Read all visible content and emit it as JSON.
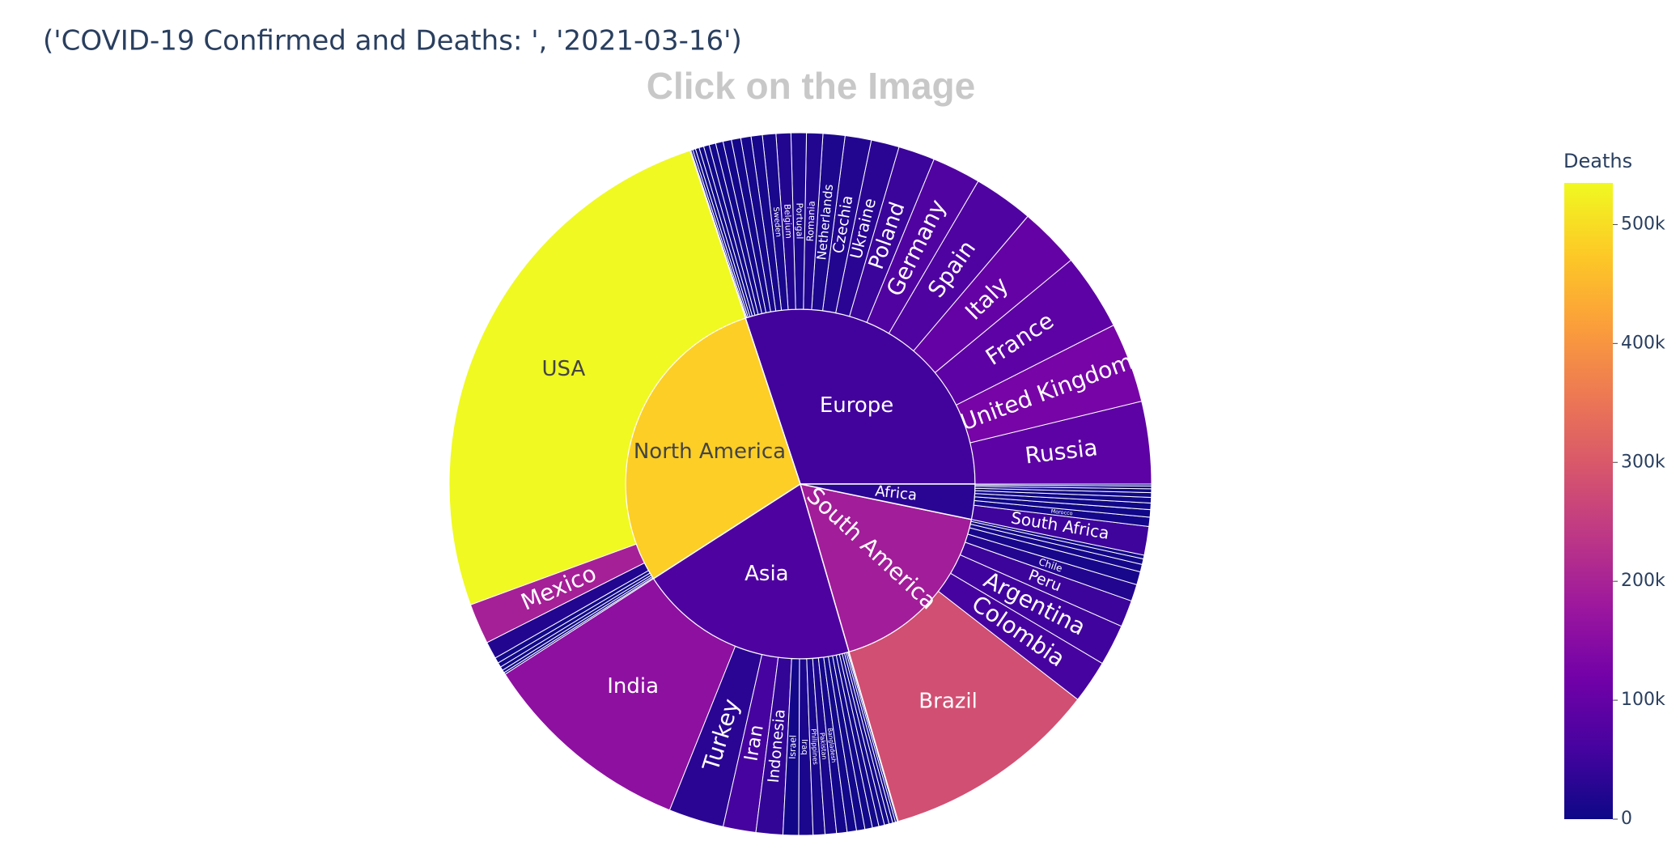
{
  "chart_data": {
    "type": "sunburst",
    "title": "('COVID-19 Confirmed and Deaths: ', '2021-03-16')",
    "subtitle": "Click on the Image",
    "colorbar_title": "Deaths",
    "clim": [
      0,
      535000
    ],
    "cticks": [
      0,
      {
        "value": 100000,
        "label": "100k"
      },
      {
        "value": 200000,
        "label": "200k"
      },
      {
        "value": 300000,
        "label": "300k"
      },
      {
        "value": 400000,
        "label": "400k"
      },
      {
        "value": 500000,
        "label": "500k"
      }
    ],
    "colorscale": [
      "#0d0887",
      "#46039f",
      "#7201a8",
      "#9c179e",
      "#bd3786",
      "#d8576b",
      "#ed7953",
      "#fb9f3a",
      "#fdca26",
      "#f0f921"
    ],
    "continents": [
      {
        "name": "Europe",
        "value": 34930000,
        "deaths": 55000,
        "children": [
          {
            "name": "Russia",
            "value": 4400000,
            "deaths": 90000
          },
          {
            "name": "United Kingdom",
            "value": 4270000,
            "deaths": 126000
          },
          {
            "name": "France",
            "value": 4100000,
            "deaths": 91000
          },
          {
            "name": "Italy",
            "value": 3240000,
            "deaths": 102000
          },
          {
            "name": "Spain",
            "value": 3200000,
            "deaths": 72000
          },
          {
            "name": "Germany",
            "value": 2600000,
            "deaths": 74000
          },
          {
            "name": "Poland",
            "value": 1950000,
            "deaths": 48000
          },
          {
            "name": "Ukraine",
            "value": 1500000,
            "deaths": 30000
          },
          {
            "name": "Czechia",
            "value": 1400000,
            "deaths": 23000
          },
          {
            "name": "Netherlands",
            "value": 1170000,
            "deaths": 16000
          },
          {
            "name": "Romania",
            "value": 870000,
            "deaths": 22000
          },
          {
            "name": "Portugal",
            "value": 820000,
            "deaths": 17000
          },
          {
            "name": "Belgium",
            "value": 790000,
            "deaths": 22000
          },
          {
            "name": "Sweden",
            "value": 720000,
            "deaths": 13000
          },
          {
            "name": null,
            "value": 600000,
            "deaths": 10000
          },
          {
            "name": null,
            "value": 550000,
            "deaths": 9000
          },
          {
            "name": null,
            "value": 500000,
            "deaths": 8000
          },
          {
            "name": null,
            "value": 450000,
            "deaths": 7000
          },
          {
            "name": null,
            "value": 400000,
            "deaths": 6000
          },
          {
            "name": null,
            "value": 350000,
            "deaths": 5000
          },
          {
            "name": null,
            "value": 300000,
            "deaths": 4000
          },
          {
            "name": null,
            "value": 250000,
            "deaths": 3000
          },
          {
            "name": null,
            "value": 200000,
            "deaths": 2000
          },
          {
            "name": null,
            "value": 150000,
            "deaths": 1500
          },
          {
            "name": null,
            "value": 100000,
            "deaths": 1000
          },
          {
            "name": null,
            "value": 50000,
            "deaths": 500
          }
        ]
      },
      {
        "name": "North America",
        "value": 33690000,
        "deaths": 480000,
        "children": [
          {
            "name": "USA",
            "value": 29600000,
            "deaths": 535000
          },
          {
            "name": "Mexico",
            "value": 2170000,
            "deaths": 195000
          },
          {
            "name": null,
            "value": 920000,
            "deaths": 22000
          },
          {
            "name": null,
            "value": 300000,
            "deaths": 5000
          },
          {
            "name": null,
            "value": 250000,
            "deaths": 4000
          },
          {
            "name": null,
            "value": 200000,
            "deaths": 3000
          },
          {
            "name": null,
            "value": 150000,
            "deaths": 2000
          },
          {
            "name": null,
            "value": 100000,
            "deaths": 1000
          }
        ]
      },
      {
        "name": "Asia",
        "value": 23670000,
        "deaths": 70000,
        "children": [
          {
            "name": "India",
            "value": 11400000,
            "deaths": 159000
          },
          {
            "name": "Turkey",
            "value": 2950000,
            "deaths": 29800
          },
          {
            "name": "Iran",
            "value": 1750000,
            "deaths": 61000
          },
          {
            "name": "Indonesia",
            "value": 1430000,
            "deaths": 39000
          },
          {
            "name": "Israel",
            "value": 830000,
            "deaths": 6000
          },
          {
            "name": "Iraq",
            "value": 760000,
            "deaths": 14000
          },
          {
            "name": "Philippines",
            "value": 630000,
            "deaths": 12800
          },
          {
            "name": "Pakistan",
            "value": 610000,
            "deaths": 13600
          },
          {
            "name": "Bangladesh",
            "value": 560000,
            "deaths": 8700
          },
          {
            "name": null,
            "value": 500000,
            "deaths": 5000
          },
          {
            "name": null,
            "value": 450000,
            "deaths": 5000
          },
          {
            "name": null,
            "value": 400000,
            "deaths": 5000
          },
          {
            "name": null,
            "value": 350000,
            "deaths": 5000
          },
          {
            "name": null,
            "value": 300000,
            "deaths": 5000
          },
          {
            "name": null,
            "value": 250000,
            "deaths": 5000
          },
          {
            "name": null,
            "value": 200000,
            "deaths": 5000
          },
          {
            "name": null,
            "value": 150000,
            "deaths": 5000
          },
          {
            "name": null,
            "value": 100000,
            "deaths": 5000
          },
          {
            "name": null,
            "value": 50000,
            "deaths": 5000
          }
        ]
      },
      {
        "name": "South America",
        "value": 20030000,
        "deaths": 190000,
        "children": [
          {
            "name": "Brazil",
            "value": 11600000,
            "deaths": 282000
          },
          {
            "name": "Colombia",
            "value": 2300000,
            "deaths": 61000
          },
          {
            "name": "Argentina",
            "value": 2200000,
            "deaths": 54000
          },
          {
            "name": "Peru",
            "value": 1430000,
            "deaths": 49000
          },
          {
            "name": "Chile",
            "value": 900000,
            "deaths": 22000
          },
          {
            "name": null,
            "value": 700000,
            "deaths": 10000
          },
          {
            "name": null,
            "value": 400000,
            "deaths": 8000
          },
          {
            "name": null,
            "value": 300000,
            "deaths": 6000
          },
          {
            "name": null,
            "value": 200000,
            "deaths": 4000
          }
        ]
      },
      {
        "name": "Africa",
        "value": 3770000,
        "deaths": 30000,
        "children": [
          {
            "name": "South Africa",
            "value": 1530000,
            "deaths": 51000
          },
          {
            "name": "Morocco",
            "value": 490000,
            "deaths": 8700
          },
          {
            "name": null,
            "value": 400000,
            "deaths": 3000
          },
          {
            "name": null,
            "value": 350000,
            "deaths": 3000
          },
          {
            "name": null,
            "value": 300000,
            "deaths": 3000
          },
          {
            "name": null,
            "value": 250000,
            "deaths": 3000
          },
          {
            "name": null,
            "value": 200000,
            "deaths": 3000
          },
          {
            "name": null,
            "value": 150000,
            "deaths": 3000
          },
          {
            "name": null,
            "value": 100000,
            "deaths": 3000
          }
        ]
      }
    ]
  }
}
